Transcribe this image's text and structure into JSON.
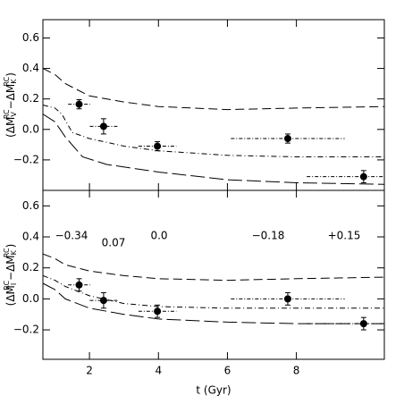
{
  "chart_data": [
    {
      "type": "scatter",
      "ylabel_parts": [
        "(ΔM",
        "V",
        "RC",
        "−ΔM",
        "K",
        "RC",
        ")"
      ],
      "xlim": [
        0.65,
        10.55
      ],
      "ylim": [
        -0.4,
        0.72
      ],
      "xticks": [
        2,
        4,
        6,
        8
      ],
      "show_xtick_labels": false,
      "yticks": [
        0.6,
        0.4,
        0.2,
        {
          "value": 0,
          "label": "0.0"
        },
        {
          "value": -0.2,
          "label": "−0.2"
        }
      ],
      "points": {
        "color": "#000000",
        "x": [
          1.7,
          2.41,
          3.97,
          7.75,
          9.95
        ],
        "xerr": [
          0.32,
          0.4,
          0.55,
          1.65,
          1.65
        ],
        "values": [
          0.165,
          0.02,
          -0.11,
          -0.06,
          -0.31
        ],
        "yerr": [
          0.03,
          0.05,
          0.03,
          0.03,
          0.04
        ]
      },
      "lines": [
        {
          "style": "dashed",
          "x": [
            0.65,
            1.0,
            1.3,
            2,
            3,
            4,
            6,
            8,
            10.55
          ],
          "values": [
            0.4,
            0.36,
            0.3,
            0.22,
            0.18,
            0.15,
            0.13,
            0.14,
            0.15
          ]
        },
        {
          "style": "dashdot",
          "x": [
            0.65,
            1.0,
            1.2,
            1.5,
            2,
            3,
            4,
            6,
            8,
            10.55
          ],
          "values": [
            0.16,
            0.14,
            0.1,
            -0.02,
            -0.06,
            -0.11,
            -0.14,
            -0.17,
            -0.18,
            -0.18
          ]
        },
        {
          "style": "longdash",
          "x": [
            0.65,
            1.0,
            1.3,
            1.8,
            2.5,
            4,
            6,
            8,
            10.55
          ],
          "values": [
            0.1,
            0.05,
            -0.05,
            -0.18,
            -0.23,
            -0.28,
            -0.33,
            -0.35,
            -0.36
          ]
        }
      ]
    },
    {
      "type": "scatter",
      "ylabel_parts": [
        "(ΔM",
        "I",
        "RC",
        "−ΔM",
        "K",
        "RC",
        ")"
      ],
      "xlabel": "t (Gyr)",
      "xlim": [
        0.65,
        10.55
      ],
      "ylim": [
        -0.39,
        0.7
      ],
      "xticks": [
        2,
        4,
        6,
        8
      ],
      "show_xtick_labels": true,
      "yticks": [
        0.6,
        0.4,
        0.2,
        {
          "value": 0,
          "label": "0.0"
        },
        {
          "value": -0.2,
          "label": "−0.2"
        }
      ],
      "annotations": [
        "−0.34",
        "0.07",
        "0.0",
        "−0.18",
        "+0.15"
      ],
      "points": {
        "color": "#000000",
        "x": [
          1.7,
          2.41,
          3.97,
          7.75,
          9.95
        ],
        "xerr": [
          0.32,
          0.4,
          0.55,
          1.65,
          1.65
        ],
        "values": [
          0.09,
          -0.01,
          -0.08,
          0.0,
          -0.16
        ],
        "yerr": [
          0.04,
          0.05,
          0.04,
          0.04,
          0.04
        ]
      },
      "lines": [
        {
          "style": "dashed",
          "x": [
            0.65,
            1.0,
            1.3,
            2,
            3,
            4,
            6,
            8,
            10.55
          ],
          "values": [
            0.29,
            0.26,
            0.22,
            0.18,
            0.15,
            0.13,
            0.12,
            0.13,
            0.14
          ]
        },
        {
          "style": "dashdot",
          "x": [
            0.65,
            1.0,
            1.3,
            2,
            3,
            4,
            6,
            8,
            10.55
          ],
          "values": [
            0.15,
            0.12,
            0.08,
            0.02,
            -0.03,
            -0.05,
            -0.06,
            -0.06,
            -0.06
          ]
        },
        {
          "style": "longdash",
          "x": [
            0.65,
            1.0,
            1.3,
            2,
            3,
            4,
            6,
            8,
            10.55
          ],
          "values": [
            0.1,
            0.06,
            0.0,
            -0.06,
            -0.1,
            -0.13,
            -0.15,
            -0.16,
            -0.16
          ]
        }
      ]
    }
  ]
}
